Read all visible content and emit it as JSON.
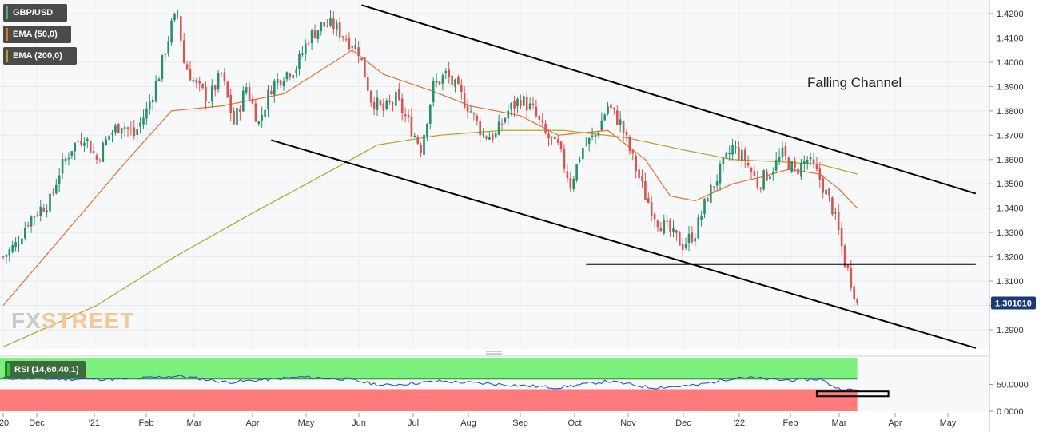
{
  "legend": {
    "symbol": "GBP/USD",
    "ema50_label": "EMA (50,0)",
    "ema200_label": "EMA (200,0)",
    "symbol_color": "#4caf7a",
    "ema50_color": "#e8702a",
    "ema200_color": "#b5a41c"
  },
  "watermark": {
    "part1": "FX",
    "part2": "STREET"
  },
  "annotation": {
    "label": "Falling Channel"
  },
  "price_label": "1.301010",
  "rsi": {
    "label": "RSI (14,60,40,1)",
    "y_ticks": [
      "50.0000",
      "0.0000"
    ],
    "upper": 60,
    "lower": 40
  },
  "colors": {
    "up_candle": "#26906a",
    "down_candle": "#d9534f",
    "ema50": "#e8702a",
    "ema200": "#b5a41c",
    "rsi_line": "#1f3fd6",
    "rsi_upper_zone": "#7cf07c",
    "rsi_lower_zone": "#ff7b7b",
    "price_line": "#1a3a7a"
  },
  "chart_data": {
    "type": "candlestick",
    "title": "",
    "ylim": [
      1.2815,
      1.4245
    ],
    "y_ticks": [
      "1.4200",
      "1.4100",
      "1.4000",
      "1.3900",
      "1.3800",
      "1.3700",
      "1.3600",
      "1.3500",
      "1.3400",
      "1.3300",
      "1.3200",
      "1.3100",
      "1.3000",
      "1.2900"
    ],
    "x_ticks": [
      "'20",
      "Dec",
      "'21",
      "Feb",
      "Mar",
      "Apr",
      "May",
      "Jun",
      "Jul",
      "Aug",
      "Sep",
      "Oct",
      "Nov",
      "Dec",
      "'22",
      "Feb",
      "Mar",
      "Apr",
      "May"
    ],
    "current_price": 1.30101,
    "close_path": [
      [
        0,
        1.32
      ],
      [
        4,
        1.325
      ],
      [
        8,
        1.335
      ],
      [
        12,
        1.34
      ],
      [
        15,
        1.343
      ],
      [
        18,
        1.355
      ],
      [
        22,
        1.365
      ],
      [
        26,
        1.37
      ],
      [
        30,
        1.36
      ],
      [
        34,
        1.37
      ],
      [
        38,
        1.375
      ],
      [
        42,
        1.37
      ],
      [
        46,
        1.38
      ],
      [
        50,
        1.395
      ],
      [
        54,
        1.415
      ],
      [
        56,
        1.42
      ],
      [
        58,
        1.4
      ],
      [
        62,
        1.39
      ],
      [
        66,
        1.385
      ],
      [
        70,
        1.395
      ],
      [
        74,
        1.375
      ],
      [
        78,
        1.39
      ],
      [
        82,
        1.375
      ],
      [
        86,
        1.39
      ],
      [
        90,
        1.395
      ],
      [
        94,
        1.398
      ],
      [
        98,
        1.41
      ],
      [
        102,
        1.415
      ],
      [
        106,
        1.415
      ],
      [
        110,
        1.41
      ],
      [
        114,
        1.405
      ],
      [
        118,
        1.385
      ],
      [
        122,
        1.38
      ],
      [
        126,
        1.385
      ],
      [
        130,
        1.375
      ],
      [
        134,
        1.365
      ],
      [
        138,
        1.39
      ],
      [
        142,
        1.395
      ],
      [
        146,
        1.388
      ],
      [
        150,
        1.38
      ],
      [
        154,
        1.37
      ],
      [
        158,
        1.37
      ],
      [
        162,
        1.38
      ],
      [
        166,
        1.385
      ],
      [
        170,
        1.38
      ],
      [
        174,
        1.37
      ],
      [
        178,
        1.365
      ],
      [
        182,
        1.35
      ],
      [
        186,
        1.365
      ],
      [
        190,
        1.37
      ],
      [
        194,
        1.382
      ],
      [
        198,
        1.375
      ],
      [
        202,
        1.36
      ],
      [
        206,
        1.345
      ],
      [
        210,
        1.335
      ],
      [
        214,
        1.33
      ],
      [
        218,
        1.325
      ],
      [
        222,
        1.33
      ],
      [
        226,
        1.345
      ],
      [
        230,
        1.355
      ],
      [
        234,
        1.365
      ],
      [
        238,
        1.36
      ],
      [
        242,
        1.35
      ],
      [
        246,
        1.355
      ],
      [
        250,
        1.362
      ],
      [
        254,
        1.355
      ],
      [
        258,
        1.36
      ],
      [
        262,
        1.352
      ],
      [
        266,
        1.34
      ],
      [
        268,
        1.33
      ],
      [
        270,
        1.318
      ],
      [
        272,
        1.31
      ],
      [
        274,
        1.301
      ]
    ],
    "ema50_path": [
      [
        0,
        1.3
      ],
      [
        20,
        1.33
      ],
      [
        40,
        1.36
      ],
      [
        54,
        1.38
      ],
      [
        70,
        1.382
      ],
      [
        90,
        1.387
      ],
      [
        106,
        1.4
      ],
      [
        112,
        1.405
      ],
      [
        122,
        1.395
      ],
      [
        138,
        1.388
      ],
      [
        150,
        1.382
      ],
      [
        166,
        1.378
      ],
      [
        178,
        1.37
      ],
      [
        194,
        1.372
      ],
      [
        206,
        1.36
      ],
      [
        214,
        1.345
      ],
      [
        222,
        1.343
      ],
      [
        234,
        1.35
      ],
      [
        244,
        1.353
      ],
      [
        252,
        1.356
      ],
      [
        262,
        1.354
      ],
      [
        268,
        1.348
      ],
      [
        274,
        1.34
      ]
    ],
    "ema200_path": [
      [
        0,
        1.283
      ],
      [
        30,
        1.3
      ],
      [
        55,
        1.32
      ],
      [
        80,
        1.338
      ],
      [
        106,
        1.356
      ],
      [
        120,
        1.366
      ],
      [
        140,
        1.37
      ],
      [
        160,
        1.372
      ],
      [
        180,
        1.372
      ],
      [
        200,
        1.369
      ],
      [
        218,
        1.364
      ],
      [
        234,
        1.36
      ],
      [
        250,
        1.359
      ],
      [
        262,
        1.358
      ],
      [
        274,
        1.354
      ]
    ],
    "trendlines": [
      {
        "name": "upper-channel",
        "from": [
          115,
          1.4235
        ],
        "to": [
          312,
          1.346
        ]
      },
      {
        "name": "lower-channel",
        "from": [
          86,
          1.368
        ],
        "to": [
          312,
          1.2825
        ]
      },
      {
        "name": "support",
        "from": [
          187,
          1.317
        ],
        "to": [
          312,
          1.317
        ]
      }
    ],
    "rsi_path": [
      [
        0,
        62
      ],
      [
        20,
        60
      ],
      [
        40,
        60
      ],
      [
        56,
        66
      ],
      [
        72,
        54
      ],
      [
        96,
        64
      ],
      [
        110,
        60
      ],
      [
        122,
        48
      ],
      [
        140,
        56
      ],
      [
        160,
        50
      ],
      [
        178,
        44
      ],
      [
        194,
        56
      ],
      [
        208,
        44
      ],
      [
        222,
        48
      ],
      [
        236,
        64
      ],
      [
        250,
        58
      ],
      [
        262,
        60
      ],
      [
        268,
        42
      ],
      [
        274,
        38
      ]
    ],
    "rsi_zoom_box": {
      "from": [
        261,
        37
      ],
      "to": [
        284,
        28
      ]
    }
  }
}
